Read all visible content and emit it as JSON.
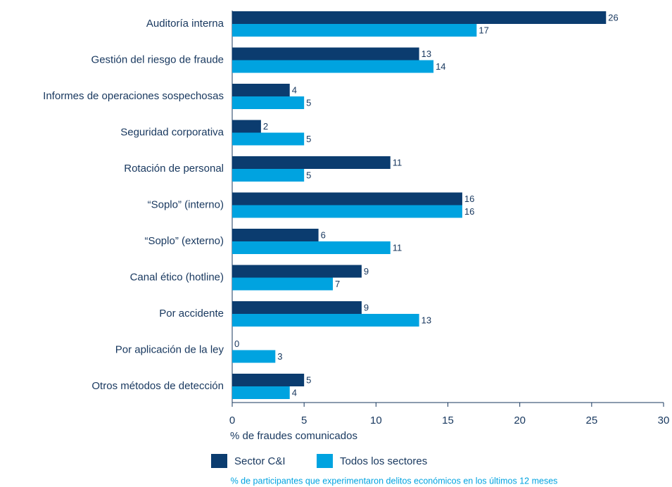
{
  "chart_data": {
    "type": "bar",
    "orientation": "horizontal",
    "categories": [
      "Auditoría interna",
      "Gestión del riesgo de fraude",
      "Informes de operaciones sospechosas",
      "Seguridad corporativa",
      "Rotación de personal",
      "“Soplo” (interno)",
      "“Soplo” (externo)",
      "Canal ético (hotline)",
      "Por accidente",
      "Por aplicación de la ley",
      "Otros métodos de detección"
    ],
    "series": [
      {
        "name": "Sector C&I",
        "color": "#0b3c6f",
        "values": [
          26,
          13,
          4,
          2,
          11,
          16,
          6,
          9,
          9,
          0,
          5
        ]
      },
      {
        "name": "Todos los sectores",
        "color": "#00a3e0",
        "values": [
          17,
          14,
          5,
          5,
          5,
          16,
          11,
          7,
          13,
          3,
          4
        ]
      }
    ],
    "xlim": [
      0,
      30
    ],
    "xticks": [
      0,
      5,
      10,
      15,
      20,
      25,
      30
    ],
    "x_label": "% de fraudes comunicados",
    "footnote": "% de participantes que experimentaron delitos económicos en los últimos 12 meses"
  }
}
